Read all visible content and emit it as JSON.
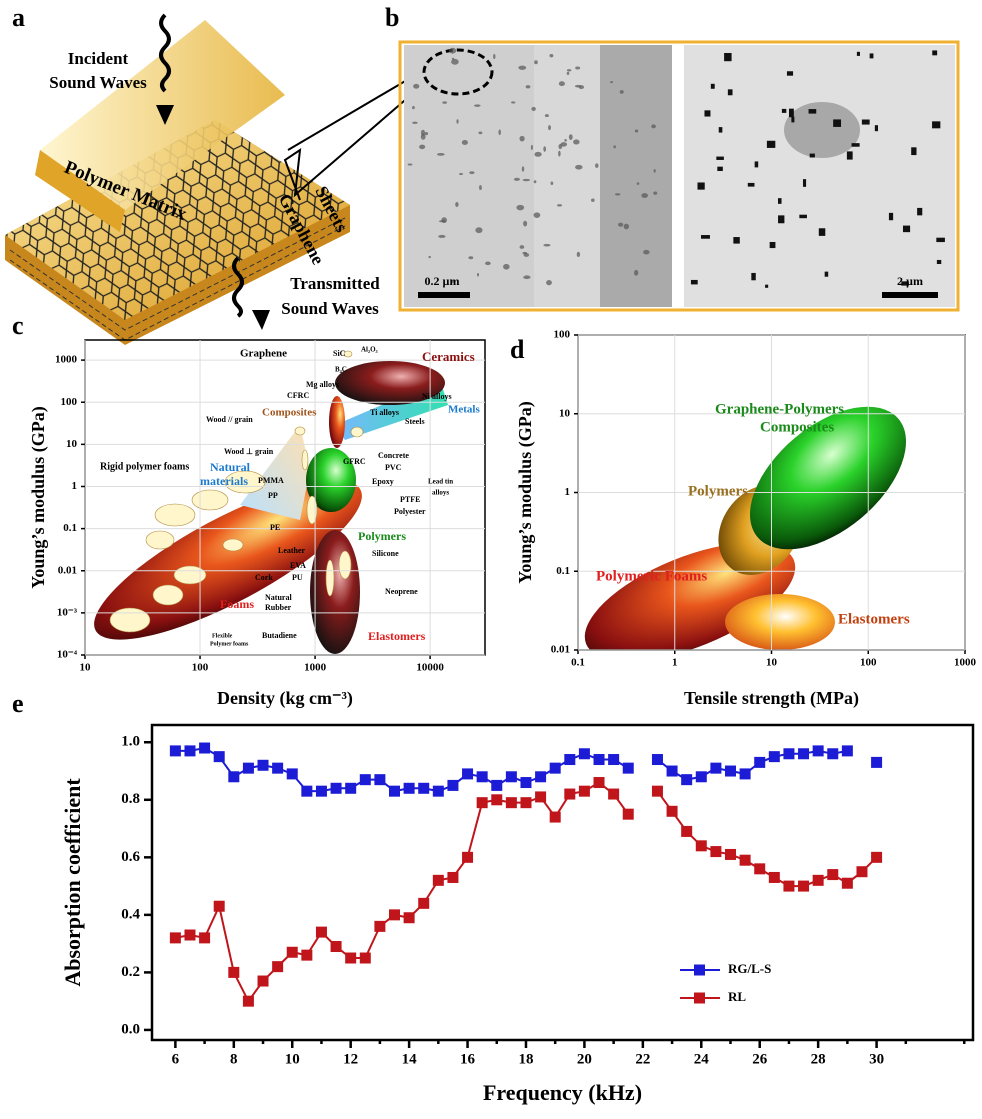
{
  "panel_labels": [
    "a",
    "b",
    "c",
    "d",
    "e"
  ],
  "panel_a": {
    "incident": [
      "Incident",
      "Sound Waves"
    ],
    "matrix": "Polymer Matrix",
    "sheets": [
      "Graphene",
      "Sheets"
    ],
    "transmitted": [
      "Transmitted",
      "Sound Waves"
    ]
  },
  "panel_b": {
    "scale_bars": [
      "0.2 µm",
      "2 µm"
    ]
  },
  "chart_data": [
    {
      "type": "ashby",
      "xlabel": "Density (kg cm⁻³)",
      "ylabel": "Young’s modulus (GPa)",
      "log_x": true,
      "log_y": true,
      "xlim": [
        10,
        30000
      ],
      "ylim": [
        0.0001,
        3000
      ],
      "xticks": [
        10,
        100,
        1000,
        10000
      ],
      "yticks": [
        1000,
        100,
        10,
        1,
        0.1,
        0.01,
        {
          "value": 0.001,
          "label": "10⁻³"
        },
        {
          "value": 0.0001,
          "label": "10⁻⁴"
        }
      ],
      "labels": [
        "Graphene",
        "SiC",
        "Al₂O₃",
        "B₄C",
        "Ceramics",
        "Mg alloys",
        "CFRC",
        "Ni alloys",
        "Ti alloys",
        "Steels",
        "Metals",
        "Wood // grain",
        "Composites",
        "Wood ⊥ grain",
        "Natural",
        "materials",
        "PMMA",
        "PP",
        "PE",
        "GFRC",
        "Concrete",
        "PVC",
        "Epoxy",
        "Lead tin",
        "alloys",
        "PTFE",
        "Polyester",
        "Rigid polymer foams",
        "Leather",
        "Polymers",
        "Silicone",
        "EVA",
        "PU",
        "Cork",
        "Natural",
        "Rubber",
        "Butadiene",
        "Neoprene",
        "Foams",
        "Elastomers",
        "Flexible",
        "Polymer foams"
      ]
    },
    {
      "type": "ashby",
      "xlabel": "Tensile strength (MPa)",
      "ylabel": "Young’s modulus (GPa)",
      "log_x": true,
      "log_y": true,
      "xlim": [
        0.1,
        1000
      ],
      "ylim": [
        0.01,
        100
      ],
      "xticks": [
        0.1,
        1,
        10,
        100,
        1000
      ],
      "yticks": [
        0.01,
        0.1,
        1,
        10,
        100
      ],
      "labels": [
        "Graphene-Polymers",
        "Composites",
        "Polymers",
        "Polymeric Foams",
        "Elastomers"
      ]
    },
    {
      "type": "line",
      "xlabel": "Frequency (kHz)",
      "ylabel": "Absorption coefficient",
      "xlim": [
        5.2,
        33.3
      ],
      "ylim": [
        -0.035,
        1.06
      ],
      "xticks": [
        6,
        8,
        10,
        12,
        14,
        16,
        18,
        20,
        22,
        24,
        26,
        28,
        30
      ],
      "xticks_minor": [
        7,
        9,
        11,
        13,
        15,
        17,
        19,
        21,
        23,
        25,
        27,
        29,
        31,
        33
      ],
      "yticks": [
        {
          "value": 0,
          "label": "0.0"
        },
        0.2,
        0.4,
        0.6,
        0.8,
        {
          "value": 1,
          "label": "1.0"
        }
      ],
      "x": [
        6,
        6.5,
        7,
        7.5,
        8,
        8.5,
        9,
        9.5,
        10,
        10.5,
        11,
        11.5,
        12,
        12.5,
        13,
        13.5,
        14,
        14.5,
        15,
        15.5,
        16,
        16.5,
        17,
        17.5,
        18,
        18.5,
        19,
        19.5,
        20,
        20.5,
        21,
        21.5,
        22,
        22.5,
        23,
        23.5,
        24,
        24.5,
        25,
        25.5,
        26,
        26.5,
        27,
        27.5,
        28,
        28.5,
        29,
        29.5,
        30
      ],
      "series": [
        {
          "name": "RG/L-S",
          "color": "#1c1cd6",
          "values": [
            0.97,
            0.97,
            0.98,
            0.95,
            0.88,
            0.91,
            0.92,
            0.91,
            0.89,
            0.83,
            0.83,
            0.84,
            0.84,
            0.87,
            0.87,
            0.83,
            0.84,
            0.84,
            0.83,
            0.85,
            0.89,
            0.88,
            0.85,
            0.88,
            0.86,
            0.88,
            0.91,
            0.94,
            0.96,
            0.94,
            0.94,
            0.91,
            null,
            0.94,
            0.9,
            0.87,
            0.88,
            0.91,
            0.9,
            0.89,
            0.93,
            0.95,
            0.96,
            0.96,
            0.97,
            0.96,
            0.97,
            null,
            0.93
          ]
        },
        {
          "name": "RL",
          "color": "#c0161b",
          "values": [
            0.32,
            0.33,
            0.32,
            0.43,
            0.2,
            0.1,
            0.17,
            0.22,
            0.27,
            0.26,
            0.34,
            0.29,
            0.25,
            0.25,
            0.36,
            0.4,
            0.39,
            0.44,
            0.52,
            0.53,
            0.6,
            0.79,
            0.8,
            0.79,
            0.79,
            0.81,
            0.74,
            0.82,
            0.83,
            0.86,
            0.82,
            0.75,
            null,
            0.83,
            0.76,
            0.69,
            0.64,
            0.62,
            0.61,
            0.59,
            0.56,
            0.53,
            0.5,
            0.5,
            0.52,
            0.54,
            0.51,
            0.55,
            0.6
          ]
        }
      ]
    }
  ]
}
